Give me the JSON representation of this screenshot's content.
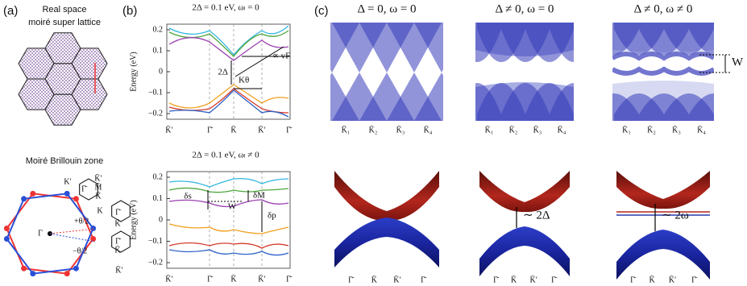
{
  "panel_a": {
    "label": "(a)",
    "title_top": "Real space",
    "subtitle_top": "moiré super lattice",
    "title_bottom": "Moiré Brillouin zone",
    "points": [
      "K′",
      "K̄′",
      "M̄",
      "K̄",
      "K",
      "Γ̄",
      "Γ̄",
      "K̄",
      "Γ̄",
      "K̄",
      "K̄′",
      "Γ"
    ],
    "angles": [
      "+θ/2",
      "−θ/2"
    ]
  },
  "panel_b": {
    "label": "(b)",
    "top": {
      "title": "2Δ = 0.1 eV, ωₗ = 0",
      "y_axis_label": "Energy (eV)",
      "yticks": [
        "0.2",
        "0.1",
        "0",
        "−0.1",
        "−0.2"
      ],
      "xticks": [
        "K̄′",
        "Γ̄",
        "K̄",
        "K̄′",
        "Γ̄"
      ],
      "annotations": [
        "2Δ",
        "Kθ",
        "∝ vF"
      ]
    },
    "bottom": {
      "title": "2Δ = 0.1 eV, ωₗ ≠ 0",
      "y_axis_label": "Energy (eV)",
      "yticks": [
        "0.2",
        "0.1",
        "0",
        "−0.1",
        "−0.2"
      ],
      "xticks": [
        "K̄′",
        "Γ̄",
        "K̄",
        "K̄′",
        "Γ̄"
      ],
      "annotations": [
        "δs",
        "δM",
        "W",
        "δp"
      ]
    }
  },
  "panel_c": {
    "label": "(c)",
    "panels": [
      {
        "title": "Δ = 0, ω = 0",
        "k_labels": [
          "K̄₁",
          "K̄₂",
          "K̄₃",
          "K̄₄"
        ],
        "path_labels": [
          "Γ̄",
          "K̄",
          "K̄′",
          "Γ̄"
        ]
      },
      {
        "title": "Δ ≠ 0, ω = 0",
        "k_labels": [
          "K̄₁",
          "K̄₂",
          "K̄₃",
          "K̄₄"
        ],
        "path_labels": [
          "Γ̄",
          "K̄",
          "K̄′",
          "Γ̄"
        ],
        "annotation": "∼ 2Δ"
      },
      {
        "title": "Δ ≠ 0, ω ≠ 0",
        "k_labels": [
          "K̄₁",
          "K̄₂",
          "K̄₃",
          "K̄₄"
        ],
        "path_labels": [
          "Γ̄",
          "K̄",
          "K̄′",
          "Γ̄"
        ],
        "annotation": "∼ 2ω",
        "gap_label": "W"
      }
    ]
  }
}
